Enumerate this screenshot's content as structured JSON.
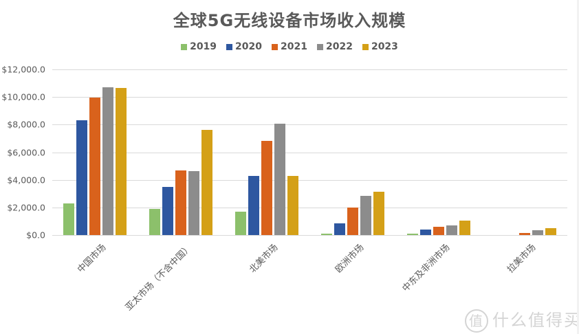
{
  "chart_data": {
    "type": "bar",
    "title": "全球5G无线设备市场收入规模",
    "xlabel": "",
    "ylabel": "",
    "ylim": [
      0,
      12000
    ],
    "yticks": [
      "$0.0",
      "$2,000.0",
      "$4,000.0",
      "$6,000.0",
      "$8,000.0",
      "$10,000.0",
      "$12,000.0"
    ],
    "grid": true,
    "legend_position": "top",
    "categories": [
      "中国市场",
      "亚太市场（不含中国）",
      "北美市场",
      "欧洲市场",
      "中东及非洲市场",
      "拉美市场"
    ],
    "series": [
      {
        "name": "2019",
        "color": "#8cc06b",
        "values": [
          2300,
          1900,
          1700,
          120,
          80,
          0
        ]
      },
      {
        "name": "2020",
        "color": "#2e57a0",
        "values": [
          8300,
          3480,
          4300,
          850,
          380,
          0
        ]
      },
      {
        "name": "2021",
        "color": "#d9621c",
        "values": [
          9970,
          4680,
          6800,
          2000,
          580,
          130
        ]
      },
      {
        "name": "2022",
        "color": "#8c8c8c",
        "values": [
          10730,
          4650,
          8080,
          2820,
          700,
          330
        ]
      },
      {
        "name": "2023",
        "color": "#d4a017",
        "values": [
          10680,
          7600,
          4300,
          3120,
          1070,
          500
        ]
      }
    ]
  },
  "watermark": {
    "icon": "值",
    "text": "什么值得买"
  }
}
